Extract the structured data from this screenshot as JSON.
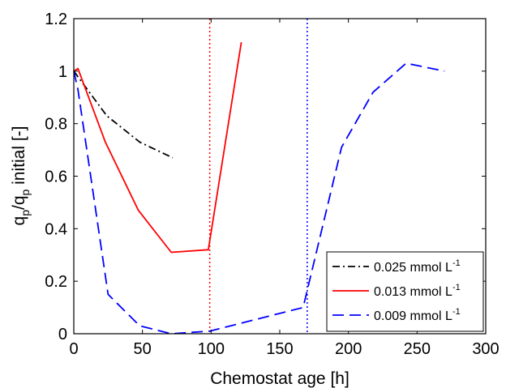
{
  "chart_data": {
    "type": "line",
    "xlabel": "Chemostat age [h]",
    "ylabel": "q_p/q_p initial [-]",
    "xlim": [
      0,
      300
    ],
    "ylim": [
      0,
      1.2
    ],
    "xticks": [
      0,
      50,
      100,
      150,
      200,
      250,
      300
    ],
    "yticks": [
      0,
      0.2,
      0.4,
      0.6,
      0.8,
      1.0,
      1.2
    ],
    "xtick_labels": [
      "0",
      "50",
      "100",
      "150",
      "200",
      "250",
      "300"
    ],
    "ytick_labels": [
      "0",
      "0.2",
      "0.4",
      "0.6",
      "0.8",
      "1",
      "1.2"
    ],
    "grid": false,
    "legend_position": "bottom-right",
    "series": [
      {
        "name": "0.025 mmol L",
        "name_superscript": "-1",
        "color": "#000000",
        "dash": "dash-dot",
        "x": [
          0,
          24,
          48,
          72
        ],
        "y": [
          1.0,
          0.83,
          0.73,
          0.67
        ]
      },
      {
        "name": "0.013 mmol L",
        "name_superscript": "-1",
        "color": "#ff0000",
        "dash": "solid",
        "x": [
          0,
          3,
          23,
          47,
          71,
          98,
          122
        ],
        "y": [
          1.0,
          1.01,
          0.73,
          0.47,
          0.31,
          0.32,
          1.11
        ]
      },
      {
        "name": "0.009 mmol L",
        "name_superscript": "-1",
        "color": "#0000ff",
        "dash": "dashed",
        "x": [
          0,
          3,
          25,
          48,
          71,
          99,
          167,
          195,
          218,
          242,
          270
        ],
        "y": [
          1.0,
          0.93,
          0.15,
          0.03,
          0.0,
          0.01,
          0.1,
          0.71,
          0.92,
          1.03,
          1.0
        ]
      }
    ],
    "vertical_lines": [
      {
        "x": 99,
        "color": "#ff0000",
        "style": "dotted"
      },
      {
        "x": 170,
        "color": "#0000ff",
        "style": "dotted"
      }
    ]
  }
}
